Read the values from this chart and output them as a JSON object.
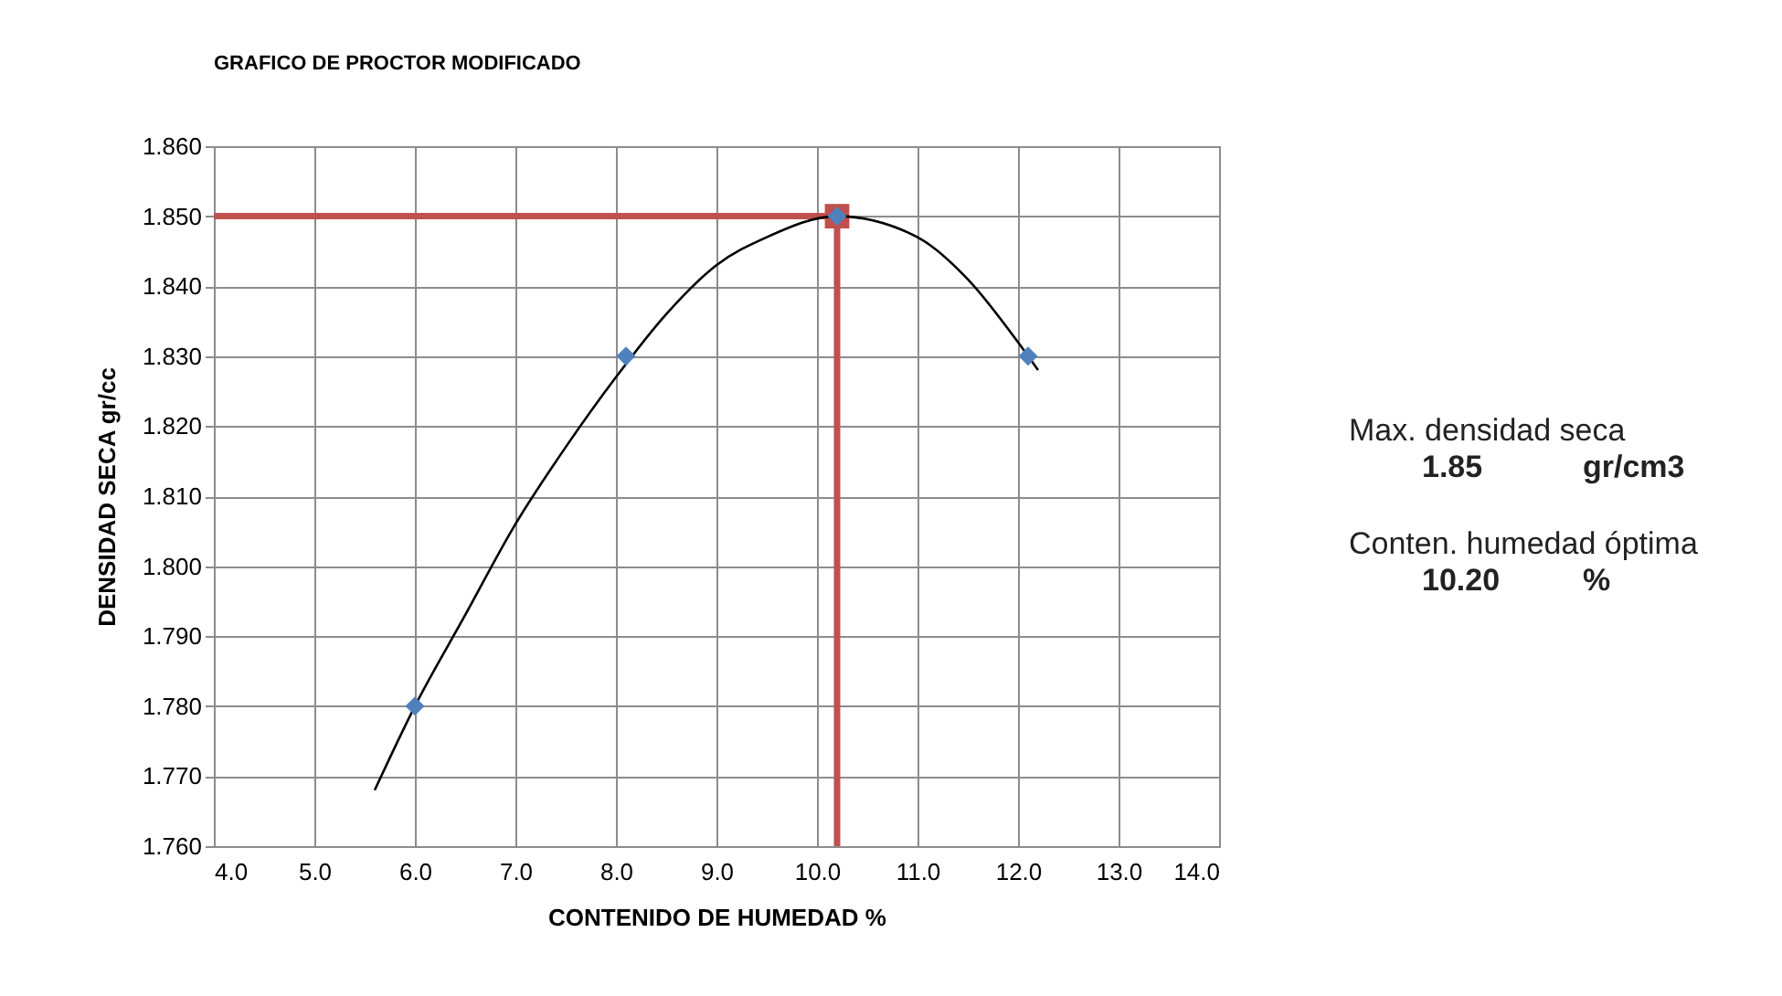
{
  "chart_data": {
    "type": "scatter",
    "title": "GRAFICO DE PROCTOR MODIFICADO",
    "xlabel": "CONTENIDO DE HUMEDAD %",
    "ylabel": "DENSIDAD SECA gr/cc",
    "xlim": [
      4,
      14
    ],
    "ylim": [
      1.76,
      1.86
    ],
    "xticks": [
      {
        "value": 4,
        "label": "4.0"
      },
      {
        "value": 5,
        "label": "5.0"
      },
      {
        "value": 6,
        "label": "6.0"
      },
      {
        "value": 7,
        "label": "7.0"
      },
      {
        "value": 8,
        "label": "8.0"
      },
      {
        "value": 9,
        "label": "9.0"
      },
      {
        "value": 10,
        "label": "10.0"
      },
      {
        "value": 11,
        "label": "11.0"
      },
      {
        "value": 12,
        "label": "12.0"
      },
      {
        "value": 13,
        "label": "13.0"
      },
      {
        "value": 14,
        "label": "14.0"
      }
    ],
    "yticks": [
      {
        "value": 1.76,
        "label": "1.760"
      },
      {
        "value": 1.77,
        "label": "1.770"
      },
      {
        "value": 1.78,
        "label": "1.780"
      },
      {
        "value": 1.79,
        "label": "1.790"
      },
      {
        "value": 1.8,
        "label": "1.800"
      },
      {
        "value": 1.81,
        "label": "1.810"
      },
      {
        "value": 1.82,
        "label": "1.820"
      },
      {
        "value": 1.83,
        "label": "1.830"
      },
      {
        "value": 1.84,
        "label": "1.840"
      },
      {
        "value": 1.85,
        "label": "1.850"
      },
      {
        "value": 1.86,
        "label": "1.860"
      }
    ],
    "grid": true,
    "series": [
      {
        "type": "line",
        "color": "#c0504d",
        "x": [
          4,
          10.2,
          10.2
        ],
        "values": [
          1.85,
          1.85,
          1.76
        ]
      },
      {
        "type": "scatter",
        "marker": "square",
        "color": "#c0504d",
        "x": [
          10.2
        ],
        "values": [
          1.85
        ]
      },
      {
        "type": "line",
        "color": "#000000",
        "x": [
          5.6,
          6.0,
          6.5,
          7.0,
          7.5,
          8.0,
          8.5,
          9.0,
          9.5,
          10.2,
          11.0,
          11.5,
          12.0,
          12.2
        ],
        "values": [
          1.768,
          1.78,
          1.793,
          1.806,
          1.817,
          1.827,
          1.836,
          1.843,
          1.847,
          1.85,
          1.847,
          1.841,
          1.832,
          1.828
        ]
      },
      {
        "type": "scatter",
        "marker": "diamond",
        "color": "#4f81bd",
        "x": [
          6.0,
          8.1,
          10.2,
          12.1
        ],
        "values": [
          1.78,
          1.83,
          1.85,
          1.83
        ]
      }
    ],
    "annotations": [
      "Max. densidad seca",
      "1.85",
      "gr/cm3",
      "Conten. humedad óptima",
      "10.20",
      "%"
    ]
  }
}
